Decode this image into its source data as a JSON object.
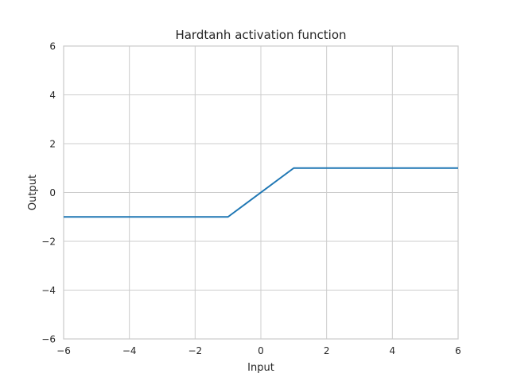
{
  "chart_data": {
    "type": "line",
    "title": "Hardtanh activation function",
    "xlabel": "Input",
    "ylabel": "Output",
    "xlim": [
      -6,
      6
    ],
    "ylim": [
      -6,
      6
    ],
    "xticks": [
      -6,
      -4,
      -2,
      0,
      2,
      4,
      6
    ],
    "yticks": [
      -6,
      -4,
      -2,
      0,
      2,
      4,
      6
    ],
    "grid": true,
    "series": [
      {
        "color": "#1f77b4",
        "x": [
          -6,
          -1,
          1,
          6
        ],
        "y": [
          -1,
          -1,
          1,
          1
        ]
      }
    ]
  }
}
